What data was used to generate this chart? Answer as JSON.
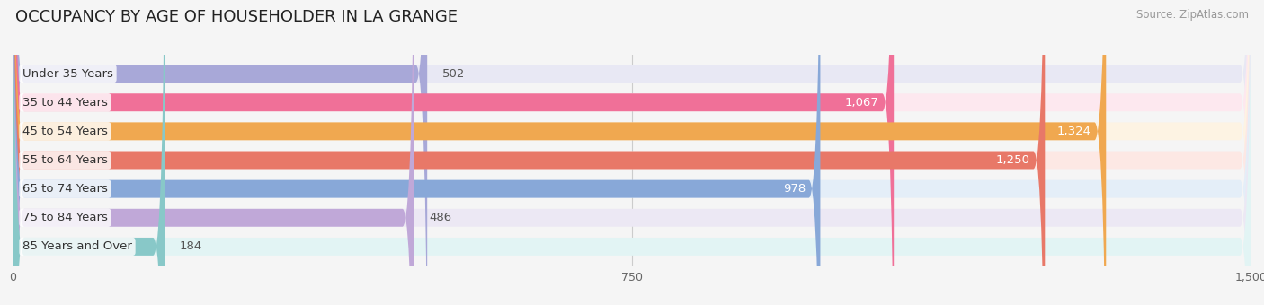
{
  "title": "OCCUPANCY BY AGE OF HOUSEHOLDER IN LA GRANGE",
  "source": "Source: ZipAtlas.com",
  "categories": [
    "Under 35 Years",
    "35 to 44 Years",
    "45 to 54 Years",
    "55 to 64 Years",
    "65 to 74 Years",
    "75 to 84 Years",
    "85 Years and Over"
  ],
  "values": [
    502,
    1067,
    1324,
    1250,
    978,
    486,
    184
  ],
  "bar_colors": [
    "#a8a8d8",
    "#f07098",
    "#f0a850",
    "#e87868",
    "#88a8d8",
    "#c0a8d8",
    "#88c8c8"
  ],
  "bar_bg_colors": [
    "#e8e8f4",
    "#fde8ef",
    "#fdf3e3",
    "#fde8e4",
    "#e4eef8",
    "#ece8f4",
    "#e2f4f4"
  ],
  "xlim": [
    0,
    1500
  ],
  "xticks": [
    0,
    750,
    1500
  ],
  "background_color": "#f5f5f5",
  "bar_height": 0.62,
  "title_fontsize": 13,
  "label_fontsize": 9.5,
  "value_fontsize": 9.5,
  "value_inside_threshold": 900
}
